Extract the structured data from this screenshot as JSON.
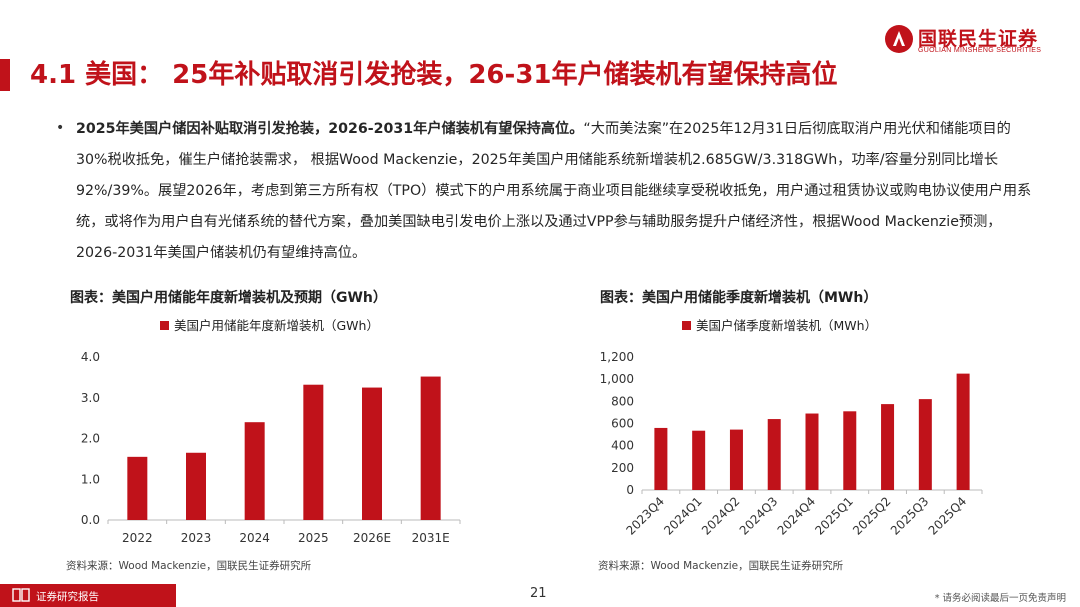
{
  "logo": {
    "name_cn": "国联民生证券",
    "name_en": "GUOLIAN MINSHENG SECURITIES"
  },
  "title": "4.1 美国： 25年补贴取消引发抢装，26-31年户储装机有望保持高位",
  "body": {
    "bullet": "•",
    "lead": "2025年美国户储因补贴取消引发抢装，2026-2031年户储装机有望保持高位。",
    "text": "“大而美法案”在2025年12月31日后彻底取消户用光伏和储能项目的30%税收抵免，催生户储抢装需求， 根据Wood Mackenzie，2025年美国户用储能系统新增装机2.685GW/3.318GWh，功率/容量分别同比增长92%/39%。展望2026年，考虑到第三方所有权（TPO）模式下的户用系统属于商业项目能继续享受税收抵免，用户通过租赁协议或购电协议使用户用系统，或将作为用户自有光储系统的替代方案，叠加美国缺电引发电价上涨以及通过VPP参与辅助服务提升户储经济性，根据Wood Mackenzie预测，2026-2031年美国户储装机仍有望维持高位。"
  },
  "chart_data": [
    {
      "type": "bar",
      "title": "图表：美国户用储能年度新增装机及预期（GWh）",
      "legend": "美国户用储能年度新增装机（GWh）",
      "categories": [
        "2022",
        "2023",
        "2024",
        "2025",
        "2026E",
        "2031E"
      ],
      "values": [
        1.55,
        1.65,
        2.4,
        3.32,
        3.25,
        3.52
      ],
      "ylim": [
        0,
        4
      ],
      "yticks": [
        "0.0",
        "1.0",
        "2.0",
        "3.0",
        "4.0"
      ],
      "ytick_values": [
        0,
        1,
        2,
        3,
        4
      ],
      "source": "资料来源：Wood Mackenzie，国联民生证券研究所",
      "color": "#c0121a"
    },
    {
      "type": "bar",
      "title": "图表：美国户用储能季度新增装机（MWh）",
      "legend": "美国户储季度新增装机（MWh）",
      "categories": [
        "2023Q4",
        "2024Q1",
        "2024Q2",
        "2024Q3",
        "2024Q4",
        "2025Q1",
        "2025Q2",
        "2025Q3",
        "2025Q4"
      ],
      "values": [
        560,
        535,
        545,
        640,
        690,
        710,
        775,
        820,
        1050
      ],
      "ylim": [
        0,
        1200
      ],
      "yticks": [
        "0",
        "200",
        "400",
        "600",
        "800",
        "1,000",
        "1,200"
      ],
      "ytick_values": [
        0,
        200,
        400,
        600,
        800,
        1000,
        1200
      ],
      "source": "资料来源：Wood Mackenzie，国联民生证券研究所",
      "color": "#c0121a"
    }
  ],
  "footer": {
    "label": "证券研究报告",
    "page": "21",
    "disclaimer": "* 请务必阅读最后一页免责声明"
  }
}
